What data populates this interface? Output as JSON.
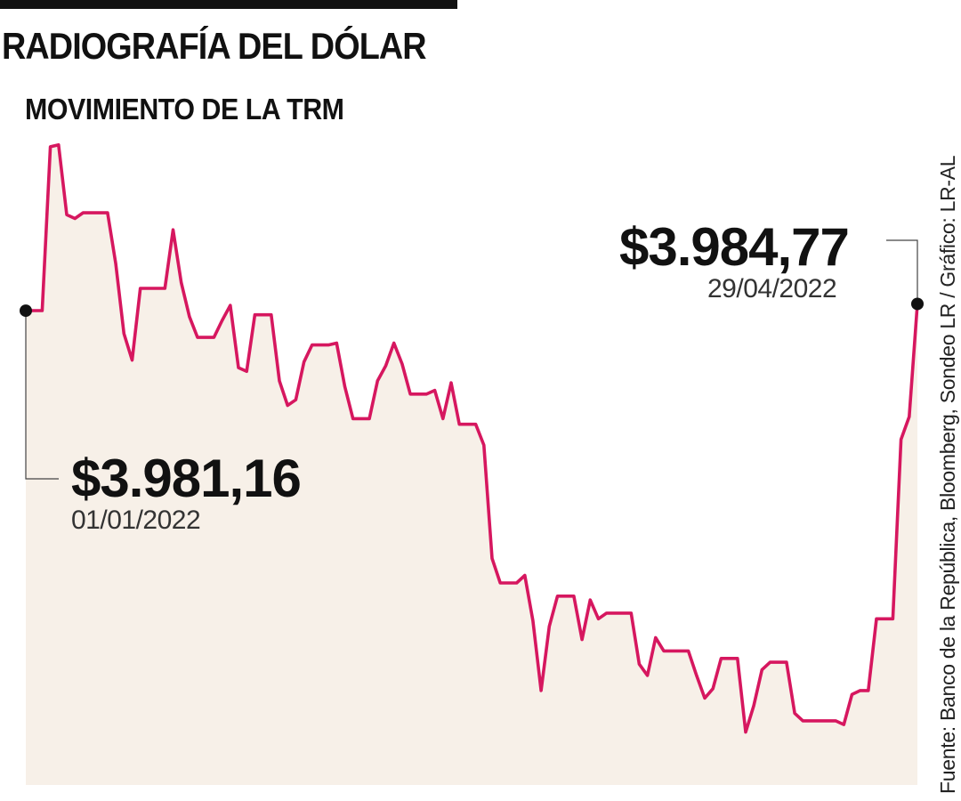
{
  "header": {
    "title": "RADIOGRAFÍA DEL DÓLAR",
    "subtitle": "MOVIMIENTO DE LA TRM"
  },
  "annotations": {
    "start": {
      "value": "$3.981,16",
      "date": "01/01/2022"
    },
    "end": {
      "value": "$3.984,77",
      "date": "29/04/2022"
    }
  },
  "source": "Fuente: Banco de la República, Bloomberg, Sondeo LR / Gráfico: LR-AL",
  "colors": {
    "line": "#d6175f",
    "fill": "#f7f0e8",
    "text": "#111111"
  },
  "chart_data": {
    "type": "area",
    "title": "MOVIMIENTO DE LA TRM",
    "xlabel": "",
    "ylabel": "",
    "grid": false,
    "legend": "none",
    "x_range": [
      "01/01/2022",
      "29/04/2022"
    ],
    "ylim": [
      3730,
      4075
    ],
    "series": [
      {
        "values": [
          3981.16,
          3981.2,
          3981.2,
          4068,
          4069,
          4032,
          4030,
          4033,
          4033,
          4033,
          4033,
          4006,
          3969,
          3955,
          3993,
          3993,
          3993,
          3993,
          4024,
          3996,
          3978,
          3967,
          3967,
          3967,
          3976,
          3984,
          3951,
          3949,
          3979,
          3979,
          3979,
          3944,
          3931,
          3934,
          3954,
          3963,
          3963,
          3963,
          3964,
          3941,
          3924,
          3924,
          3924,
          3944,
          3952,
          3964,
          3953,
          3937,
          3937,
          3937,
          3939,
          3924,
          3943,
          3921,
          3921,
          3921,
          3910,
          3850,
          3837,
          3837,
          3837,
          3841,
          3817,
          3780,
          3814,
          3830,
          3830,
          3830,
          3807,
          3828,
          3818,
          3821,
          3821,
          3821,
          3821,
          3794,
          3788,
          3808,
          3801,
          3801,
          3801,
          3801,
          3788,
          3776,
          3781,
          3797,
          3797,
          3797,
          3758,
          3772,
          3791,
          3795,
          3795,
          3795,
          3768,
          3764,
          3764,
          3764,
          3764,
          3764,
          3762,
          3778,
          3780,
          3780,
          3818,
          3818,
          3818,
          3913,
          3925,
          3984.77
        ]
      }
    ]
  }
}
